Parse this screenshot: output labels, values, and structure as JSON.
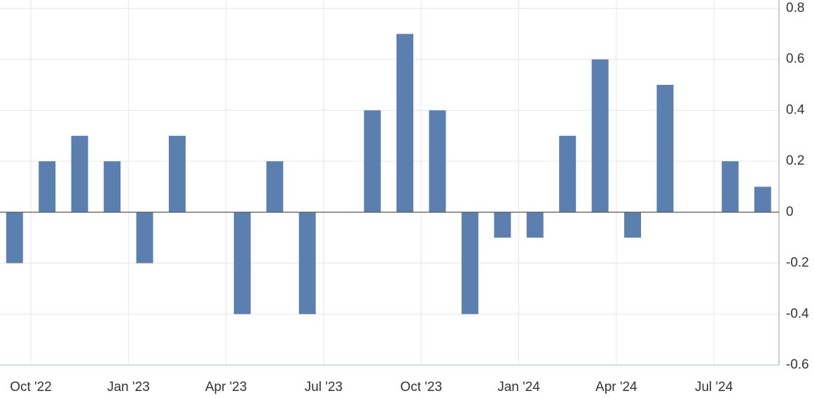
{
  "chart_data": {
    "type": "bar",
    "categories": [
      null,
      "Oct '22",
      null,
      null,
      "Jan '23",
      null,
      null,
      "Apr '23",
      null,
      null,
      "Jul '23",
      null,
      null,
      "Oct '23",
      null,
      null,
      "Jan '24",
      null,
      null,
      "Apr '24",
      null,
      null,
      "Jul '24",
      null
    ],
    "values": [
      -0.2,
      0.2,
      0.3,
      0.2,
      -0.2,
      0.3,
      0,
      -0.4,
      0.2,
      -0.4,
      0,
      0.4,
      0.7,
      0.4,
      -0.4,
      -0.1,
      -0.1,
      0.3,
      0.6,
      -0.1,
      0.5,
      0,
      0.2,
      0.1
    ],
    "color": "#5b80b0",
    "ylim": [
      -0.6,
      0.8
    ],
    "yticks": [
      -0.6,
      -0.4,
      -0.2,
      0,
      0.2,
      0.4,
      0.6,
      0.8
    ],
    "grid": true
  }
}
